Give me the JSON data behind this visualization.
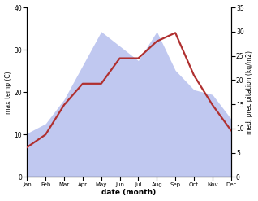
{
  "months": [
    "Jan",
    "Feb",
    "Mar",
    "Apr",
    "May",
    "Jun",
    "Jul",
    "Aug",
    "Sep",
    "Oct",
    "Nov",
    "Dec"
  ],
  "temperature": [
    7,
    10,
    17,
    22,
    22,
    28,
    28,
    32,
    34,
    24,
    17,
    11
  ],
  "precipitation": [
    9,
    11,
    16,
    23,
    30,
    27,
    24,
    30,
    22,
    18,
    17,
    12
  ],
  "temp_color": "#b03030",
  "precip_fill_color": "#c0c8f0",
  "ylabel_left": "max temp (C)",
  "ylabel_right": "med. precipitation (kg/m2)",
  "xlabel": "date (month)",
  "ylim_left": [
    0,
    40
  ],
  "ylim_right": [
    0,
    35
  ],
  "yticks_left": [
    0,
    10,
    20,
    30,
    40
  ],
  "yticks_right": [
    0,
    5,
    10,
    15,
    20,
    25,
    30,
    35
  ],
  "temp_lw": 1.6,
  "bg_color": "#ffffff"
}
